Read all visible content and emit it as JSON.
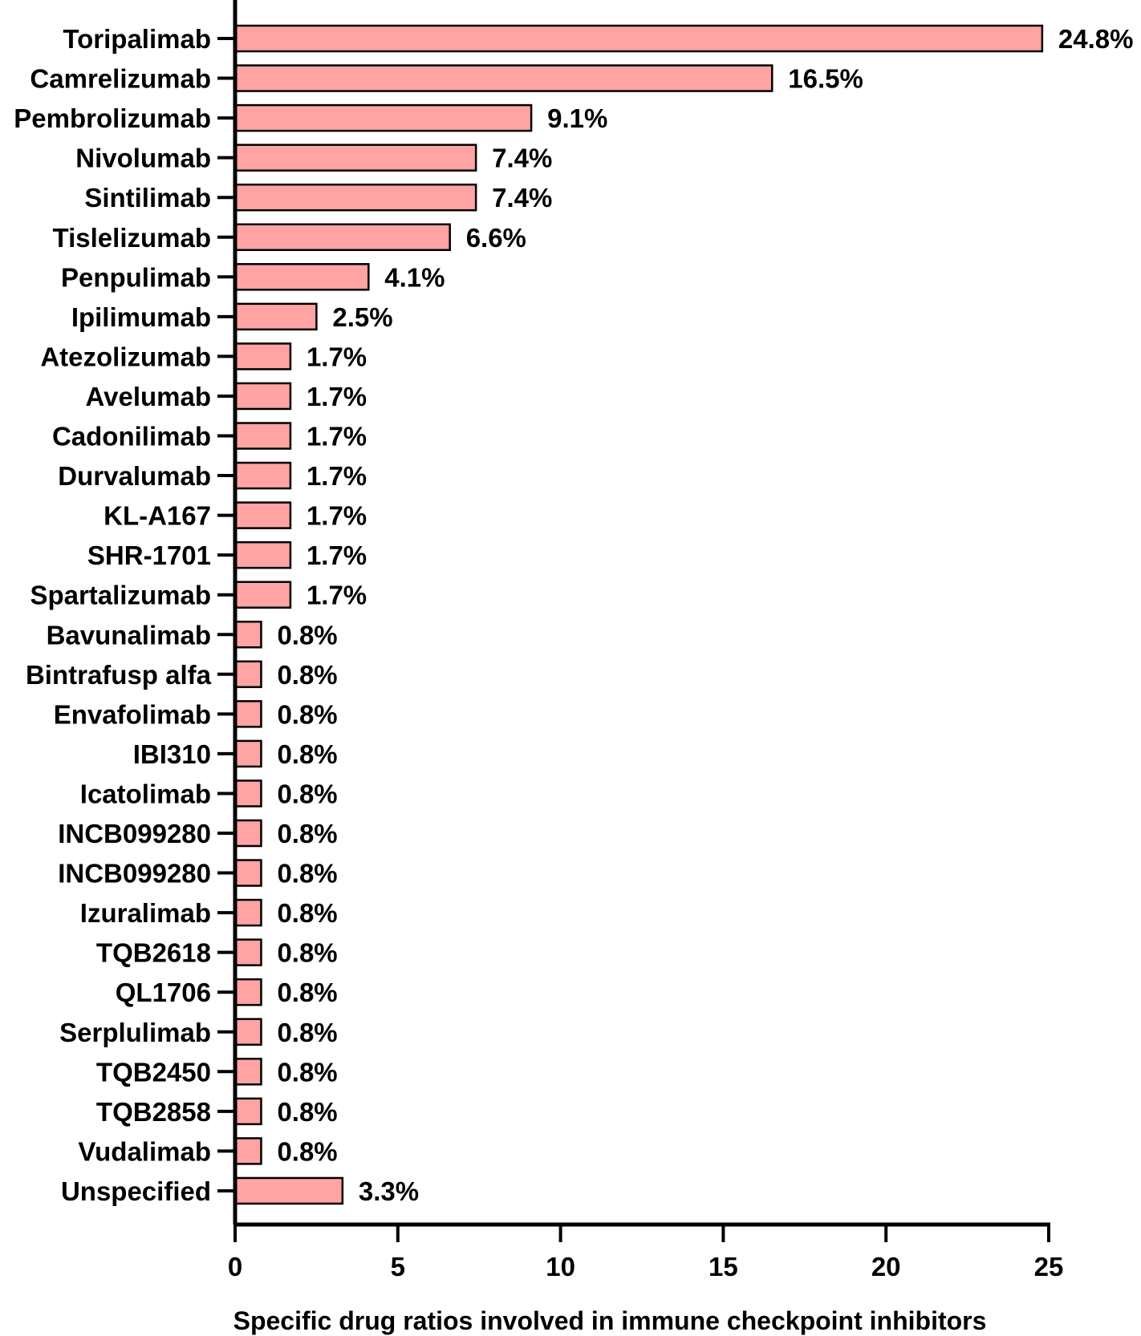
{
  "chart_data": {
    "type": "bar",
    "orientation": "horizontal",
    "categories": [
      "Toripalimab",
      "Camrelizumab",
      "Pembrolizumab",
      "Nivolumab",
      "Sintilimab",
      "Tislelizumab",
      "Penpulimab",
      "Ipilimumab",
      "Atezolizumab",
      "Avelumab",
      "Cadonilimab",
      "Durvalumab",
      "KL-A167",
      "SHR-1701",
      "Spartalizumab",
      "Bavunalimab",
      "Bintrafusp alfa",
      "Envafolimab",
      "IBI310",
      "Icatolimab",
      "INCB099280",
      "INCB099280",
      "Izuralimab",
      "TQB2618",
      "QL1706",
      "Serplulimab",
      "TQB2450",
      "TQB2858",
      "Vudalimab",
      "Unspecified"
    ],
    "values": [
      24.8,
      16.5,
      9.1,
      7.4,
      7.4,
      6.6,
      4.1,
      2.5,
      1.7,
      1.7,
      1.7,
      1.7,
      1.7,
      1.7,
      1.7,
      0.8,
      0.8,
      0.8,
      0.8,
      0.8,
      0.8,
      0.8,
      0.8,
      0.8,
      0.8,
      0.8,
      0.8,
      0.8,
      0.8,
      3.3
    ],
    "data_labels": [
      "24.8%",
      "16.5%",
      "9.1%",
      "7.4%",
      "7.4%",
      "6.6%",
      "4.1%",
      "2.5%",
      "1.7%",
      "1.7%",
      "1.7%",
      "1.7%",
      "1.7%",
      "1.7%",
      "1.7%",
      "0.8%",
      "0.8%",
      "0.8%",
      "0.8%",
      "0.8%",
      "0.8%",
      "0.8%",
      "0.8%",
      "0.8%",
      "0.8%",
      "0.8%",
      "0.8%",
      "0.8%",
      "0.8%",
      "3.3%"
    ],
    "xlabel": "Specific drug ratios involved in immune checkpoint inhibitors",
    "ylabel": "",
    "xlim": [
      0,
      25
    ],
    "xticks": [
      0,
      5,
      10,
      15,
      20,
      25
    ],
    "grid": false,
    "bar_color": "#FFA3A3",
    "edge_color": "#000000"
  }
}
